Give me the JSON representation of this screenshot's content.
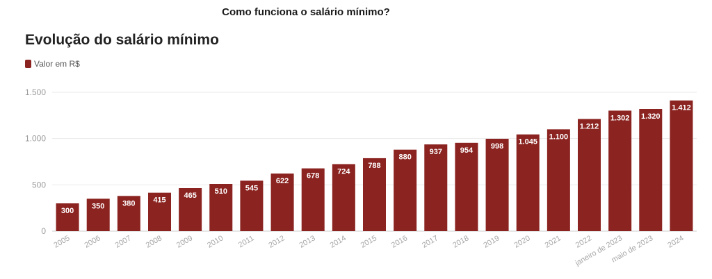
{
  "heading": "Como funciona o salário mínimo?",
  "chart_data": {
    "type": "bar",
    "title": "Evolução do salário mínimo",
    "legend": "top-left",
    "grid": true,
    "categories": [
      "2005",
      "2006",
      "2007",
      "2008",
      "2009",
      "2010",
      "2011",
      "2012",
      "2013",
      "2014",
      "2015",
      "2016",
      "2017",
      "2018",
      "2019",
      "2020",
      "2021",
      "2022",
      "janeiro de 2023",
      "maio de 2023",
      "2024"
    ],
    "series": [
      {
        "name": "Valor em R$",
        "color": "#8b2320",
        "values": [
          300,
          350,
          380,
          415,
          465,
          510,
          545,
          622,
          678,
          724,
          788,
          880,
          937,
          954,
          998,
          1045,
          1100,
          1212,
          1302,
          1320,
          1412
        ],
        "labels": [
          "300",
          "350",
          "380",
          "415",
          "465",
          "510",
          "545",
          "622",
          "678",
          "724",
          "788",
          "880",
          "937",
          "954",
          "998",
          "1.045",
          "1.100",
          "1.212",
          "1.302",
          "1.320",
          "1.412"
        ]
      }
    ],
    "ylim": [
      0,
      1500
    ],
    "yticks": [
      0,
      500,
      1000,
      1500
    ],
    "ytick_labels": [
      "0",
      "500",
      "1.000",
      "1.500"
    ]
  }
}
